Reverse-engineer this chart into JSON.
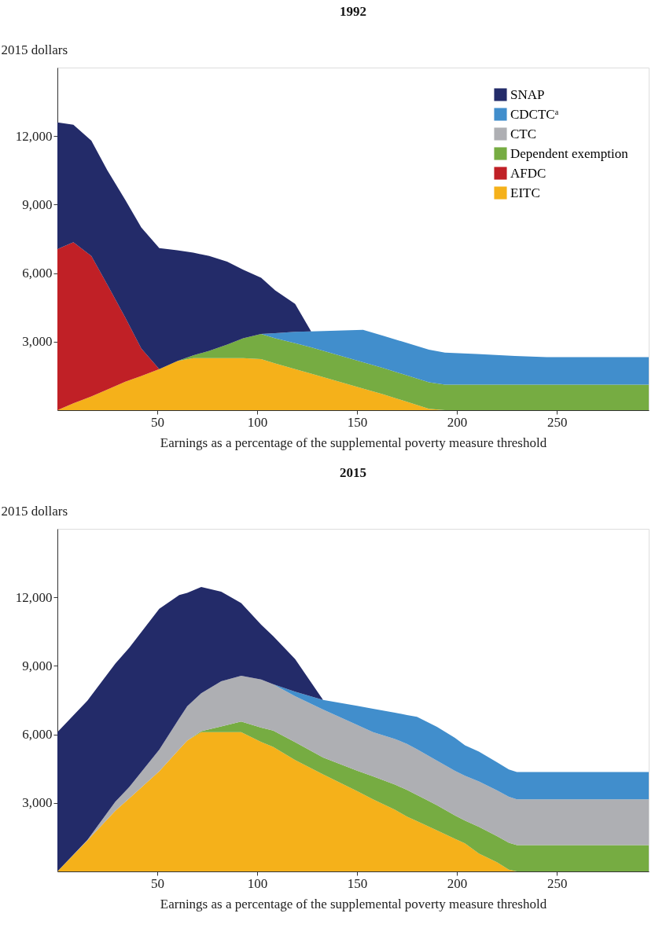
{
  "chart_data": [
    {
      "type": "area",
      "title": "1992",
      "xlabel": "Earnings as a percentage of the supplemental poverty measure threshold",
      "ylabel": "2015 dollars",
      "stacked": true,
      "legend": "top right",
      "grid": false,
      "x": [
        0,
        8,
        17,
        25,
        34,
        42,
        51,
        60,
        68,
        76,
        85,
        93,
        102,
        109,
        119,
        127,
        153,
        163,
        186,
        194,
        210,
        229,
        245,
        296
      ],
      "xlim": [
        0,
        296
      ],
      "xticks": [
        50,
        100,
        150,
        200,
        250
      ],
      "ylim": [
        0,
        15000
      ],
      "yticks": [
        {
          "value": 3000,
          "label": "3,000"
        },
        {
          "value": 6000,
          "label": "6,000"
        },
        {
          "value": 9000,
          "label": "9,000"
        },
        {
          "value": 12000,
          "label": "12,000"
        }
      ],
      "series": [
        {
          "name": "EITC",
          "color": "#f5b11a",
          "values": [
            0,
            300,
            600,
            900,
            1250,
            1500,
            1800,
            2150,
            2280,
            2280,
            2280,
            2280,
            2240,
            2050,
            1800,
            1600,
            950,
            700,
            60,
            0,
            null,
            null,
            null,
            null
          ]
        },
        {
          "name": "AFDC",
          "color": "#c02026",
          "values": [
            7050,
            7050,
            6150,
            4600,
            2800,
            1200,
            0,
            null,
            null,
            null,
            null,
            null,
            null,
            null,
            null,
            null,
            null,
            null,
            null,
            null,
            null,
            null,
            null,
            null
          ]
        },
        {
          "name": "Dependent exemption",
          "color": "#76ac42",
          "values": [
            null,
            null,
            null,
            null,
            null,
            null,
            null,
            0,
            120,
            320,
            590,
            870,
            1100,
            1100,
            1130,
            1150,
            1150,
            1150,
            1160,
            1120,
            1120,
            1120,
            1120,
            1120
          ]
        },
        {
          "name": "CTC",
          "color": "#aeafb3",
          "values": [
            null,
            null,
            null,
            null,
            null,
            null,
            null,
            null,
            null,
            null,
            null,
            null,
            null,
            null,
            null,
            null,
            null,
            null,
            null,
            null,
            null,
            null,
            null,
            null
          ]
        },
        {
          "name": "CDCTCᵃ",
          "color": "#418ecc",
          "values": [
            null,
            null,
            null,
            null,
            null,
            null,
            null,
            null,
            null,
            null,
            null,
            null,
            0,
            220,
            500,
            700,
            1420,
            1410,
            1430,
            1400,
            1340,
            1250,
            1200,
            1200
          ]
        },
        {
          "name": "SNAP",
          "color": "#232b69",
          "values": [
            5550,
            5150,
            5050,
            5000,
            5150,
            5300,
            5300,
            4850,
            4500,
            4150,
            3630,
            3000,
            2460,
            1880,
            1220,
            0,
            null,
            null,
            null,
            null,
            null,
            null,
            null,
            null
          ]
        }
      ]
    },
    {
      "type": "area",
      "title": "2015",
      "xlabel": "Earnings as a percentage of the supplemental poverty measure threshold",
      "ylabel": "2015 dollars",
      "stacked": true,
      "grid": false,
      "x": [
        0,
        15,
        29,
        36,
        51,
        61,
        65,
        72,
        82,
        92,
        102,
        108,
        119,
        133,
        150,
        158,
        169,
        175,
        180,
        190,
        199,
        204,
        211,
        220,
        226,
        230,
        296
      ],
      "xlim": [
        0,
        296
      ],
      "xticks": [
        50,
        100,
        150,
        200,
        250
      ],
      "ylim": [
        0,
        15000
      ],
      "yticks": [
        {
          "value": 3000,
          "label": "3,000"
        },
        {
          "value": 6000,
          "label": "6,000"
        },
        {
          "value": 9000,
          "label": "9,000"
        },
        {
          "value": 12000,
          "label": "12,000"
        }
      ],
      "series": [
        {
          "color": "#f5b11a",
          "values": [
            0,
            1350,
            2660,
            3200,
            4390,
            5350,
            5730,
            6100,
            6100,
            6100,
            5670,
            5450,
            4880,
            4250,
            3520,
            3160,
            2700,
            2400,
            2200,
            1800,
            1430,
            1230,
            780,
            400,
            80,
            0,
            null
          ]
        },
        {
          "color": "#76ac42",
          "values": [
            null,
            null,
            null,
            null,
            null,
            null,
            0,
            40,
            250,
            460,
            630,
            720,
            780,
            740,
            890,
            1000,
            1100,
            1170,
            1150,
            1100,
            1020,
            1000,
            1170,
            1150,
            1180,
            1150,
            1150
          ]
        },
        {
          "color": "#aeafb3",
          "values": [
            0,
            30,
            390,
            500,
            940,
            1350,
            1500,
            1660,
            1980,
            2010,
            2100,
            2030,
            2010,
            2100,
            2010,
            1940,
            2000,
            2010,
            2000,
            1950,
            1950,
            1960,
            1990,
            2000,
            2010,
            2010,
            2010
          ]
        },
        {
          "color": "#418ecc",
          "values": [
            null,
            null,
            null,
            null,
            null,
            null,
            null,
            null,
            null,
            null,
            null,
            0,
            200,
            420,
            830,
            1020,
            1150,
            1270,
            1420,
            1480,
            1450,
            1330,
            1310,
            1230,
            1190,
            1190,
            1190
          ]
        },
        {
          "color": "#232b69",
          "values": [
            6100,
            6090,
            6050,
            6100,
            6170,
            5400,
            4970,
            4650,
            3920,
            3180,
            2400,
            2100,
            1430,
            0,
            null,
            null,
            null,
            null,
            null,
            null,
            null,
            null,
            null,
            null,
            null,
            null,
            null
          ]
        }
      ]
    }
  ]
}
